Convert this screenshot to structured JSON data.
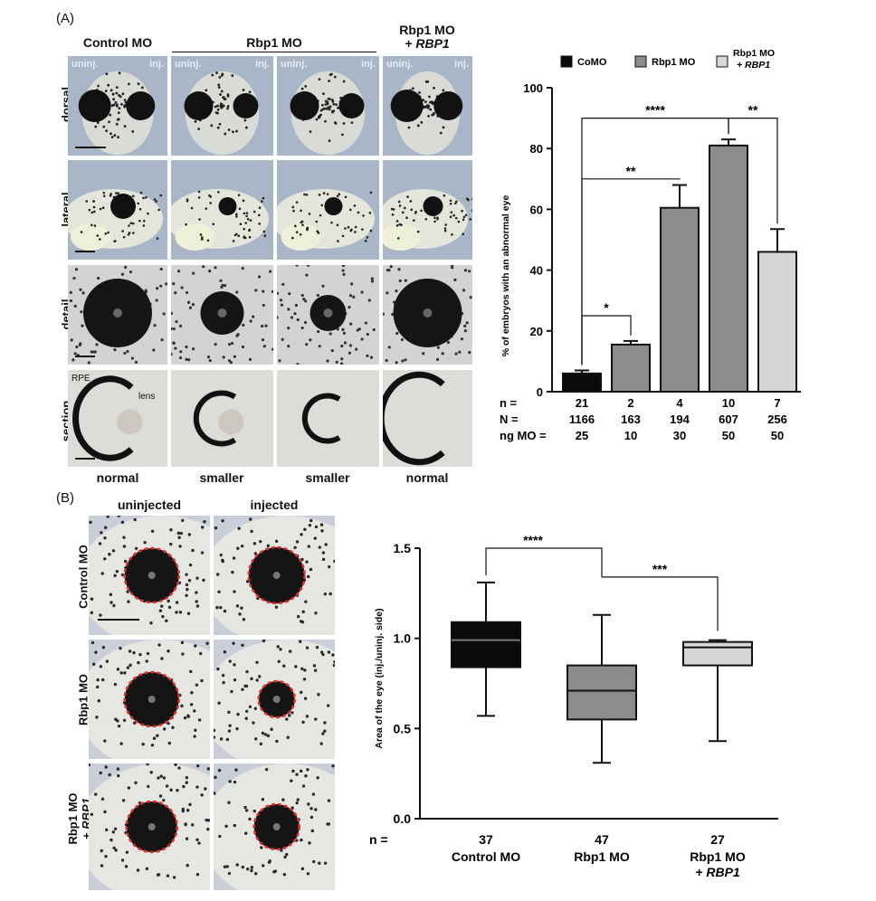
{
  "panel_a": {
    "letter": "(A)",
    "col_titles": [
      "Control MO",
      "Rbp1 MO",
      "Rbp1 MO",
      "+ RBP1"
    ],
    "corner_left": "uninj.",
    "corner_right": "inj.",
    "row_labels": [
      "dorsal",
      "lateral",
      "detail",
      "section"
    ],
    "under_labels": [
      "normal",
      "smaller",
      "smaller",
      "normal"
    ],
    "section_annotations": [
      "RPE",
      "lens"
    ]
  },
  "panel_b": {
    "letter": "(B)",
    "col_titles": [
      "uninjected",
      "injected"
    ],
    "row_labels": [
      "Control MO",
      "Rbp1 MO",
      "Rbp1 MO",
      "+ RBP1"
    ]
  },
  "chart_data": [
    {
      "type": "bar",
      "legend": [
        "CoMO",
        "Rbp1 MO",
        "Rbp1 MO",
        "+ RBP1"
      ],
      "legend_placement": "top",
      "series_colors": [
        "#0a0a0a",
        "#8c8c8c",
        "#d6d6d6"
      ],
      "ylabel": "% of embryos with an abnormal eye",
      "ylim": [
        0,
        100
      ],
      "yticks": [
        "0",
        "20",
        "40",
        "60",
        "80",
        "100"
      ],
      "bars": [
        {
          "value": 6,
          "error": 1,
          "group": 0
        },
        {
          "value": 15.5,
          "error": 1.2,
          "group": 1
        },
        {
          "value": 60.5,
          "error": 7.5,
          "group": 1
        },
        {
          "value": 81,
          "error": 2,
          "group": 1
        },
        {
          "value": 46,
          "error": 7.5,
          "group": 2
        }
      ],
      "row_labels": [
        "n =",
        "N =",
        "ng MO ="
      ],
      "n": [
        "21",
        "2",
        "4",
        "10",
        "7"
      ],
      "N": [
        "1166",
        "163",
        "194",
        "607",
        "256"
      ],
      "ng_MO": [
        "25",
        "10",
        "30",
        "50",
        "50"
      ],
      "significance": [
        {
          "from": 0,
          "to": 1,
          "label": "*"
        },
        {
          "from": 0,
          "to": 2,
          "label": "**"
        },
        {
          "from": 0,
          "to": 3,
          "label": "****"
        },
        {
          "from": 3,
          "to": 4,
          "label": "**"
        }
      ]
    },
    {
      "type": "box",
      "ylabel": "Area of the eye (inj./uninj. side)",
      "ylim": [
        0,
        1.5
      ],
      "yticks": [
        "0.0",
        "0.5",
        "1.0",
        "1.5"
      ],
      "categories": [
        "Control MO",
        "Rbp1 MO",
        "Rbp1 MO"
      ],
      "category_sub": [
        "",
        "",
        "+ RBP1"
      ],
      "n_label": "n =",
      "n": [
        "37",
        "47",
        "27"
      ],
      "series_colors": [
        "#0a0a0a",
        "#8c8c8c",
        "#d6d6d6"
      ],
      "boxes": [
        {
          "min": 0.57,
          "q1": 0.84,
          "median": 0.99,
          "q3": 1.09,
          "max": 1.31
        },
        {
          "min": 0.31,
          "q1": 0.55,
          "median": 0.71,
          "q3": 0.85,
          "max": 1.13
        },
        {
          "min": 0.43,
          "q1": 0.85,
          "median": 0.95,
          "q3": 0.98,
          "max": 0.99
        }
      ],
      "significance": [
        {
          "from": 0,
          "to": 1,
          "label": "****"
        },
        {
          "from": 1,
          "to": 2,
          "label": "***"
        }
      ]
    }
  ]
}
